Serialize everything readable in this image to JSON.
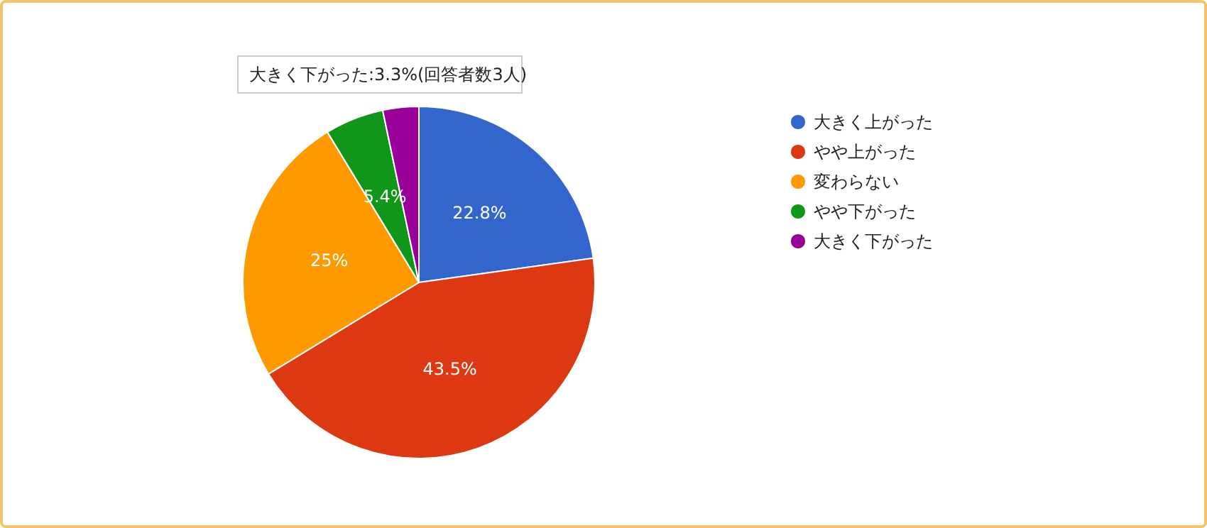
{
  "chart_data": {
    "type": "pie",
    "categories": [
      "大きく上がった",
      "やや上がった",
      "変わらない",
      "やや下がった",
      "大きく下がった"
    ],
    "values": [
      22.8,
      43.5,
      25,
      5.4,
      3.3
    ],
    "colors": [
      "#3366cc",
      "#dc3912",
      "#ff9900",
      "#109618",
      "#990099"
    ],
    "value_labels": [
      "22.8%",
      "43.5%",
      "25%",
      "5.4%",
      null
    ],
    "legend": "right",
    "annotations": [
      "大きく下がった:3.3%(回答者数3人)"
    ]
  }
}
